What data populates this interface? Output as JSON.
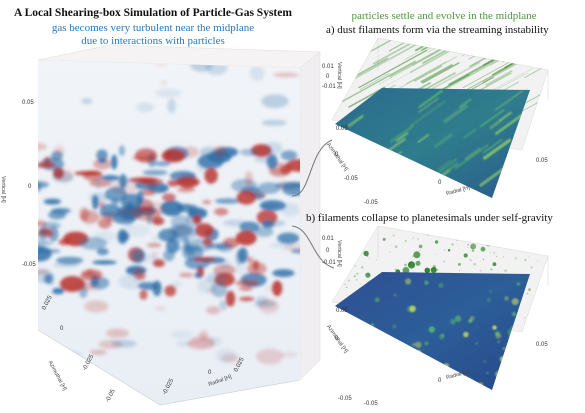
{
  "title": "A Local Shearing-box Simulation of Particle-Gas System",
  "gas_note_line1": "gas becomes very turbulent near the midplane",
  "gas_note_line2": "due to interactions with particles",
  "particles_heading": "particles settle and evolve in the midplane",
  "panel_a_label": "a) dust filaments form via the streaming instability",
  "panel_b_label": "b) filaments collapse to planetesimals under self-gravity",
  "colors": {
    "gas_text": "#2a78b4",
    "particles_text": "#4a9a3a",
    "title_text": "#111111",
    "gas_warm": "#b8302a",
    "gas_cool": "#2f6fa8",
    "dust_green": "#3a8a2a",
    "density_low": "#2c4f8c",
    "density_high": "#5cc46a"
  },
  "gas_cube": {
    "vertical_axis": "Vertical [H]",
    "azimuthal_axis": "Azimuthal [H]",
    "radial_axis": "Radial [H]",
    "vertical_ticks": [
      "0.05",
      "0",
      "-0.05"
    ],
    "azimuthal_ticks": [
      "0.025",
      "0",
      "-0.025",
      "-0.05"
    ],
    "radial_ticks": [
      "-0.025",
      "0",
      "0.025"
    ]
  },
  "panel_a": {
    "vertical_axis": "Vertical [H]",
    "azimuthal_axis": "Azimuthal [H]",
    "radial_axis": "Radial [H]",
    "vertical_ticks": [
      "0.01",
      "0",
      "-0.01"
    ],
    "azimuthal_ticks": [
      "0.05",
      "0",
      "-0.05"
    ],
    "radial_ticks": [
      "-0.05",
      "0",
      "0.05"
    ]
  },
  "panel_b": {
    "vertical_axis": "Vertical [H]",
    "azimuthal_axis": "Azimuthal [H]",
    "radial_axis": "Radial [H]",
    "vertical_ticks": [
      "0.01",
      "0",
      "-0.01"
    ],
    "azimuthal_ticks": [
      "0.05",
      "0",
      "-0.05"
    ],
    "radial_ticks": [
      "-0.05",
      "0",
      "0.05"
    ]
  }
}
